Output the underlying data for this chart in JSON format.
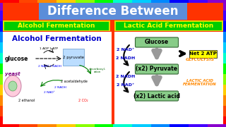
{
  "title": "Difference Between",
  "title_bg": "#5b8dd9",
  "title_color": "white",
  "left_label": "Alcohol Fermentation",
  "right_label": "Lactic Acid Fermentation",
  "label_bg": "#00cc00",
  "label_text_color": "#ffff00",
  "outer_bg": "#ff3300",
  "panel_bg": "white",
  "left_subtitle": "Alcohol Fermentation",
  "left_subtitle_color": "#0000cc",
  "right_nodes": [
    "Glucose",
    "(x2) Pyruvate",
    "(x2) Lactic acid"
  ],
  "right_node_bg": "#88cc88",
  "right_node_border": "#336633",
  "right_side_label1": "Net 2 ATP",
  "right_side_label1_bg": "#ffff00",
  "right_side_label2": "GLYCOLYSIS",
  "right_side_label2_color": "#ff8800",
  "right_side_label3": "LACTIC ACID\nFERMENTATION",
  "right_side_label3_color": "#ff8800",
  "arrow_color": "#999999",
  "curve_color": "#000000",
  "nad_color": "#0000cc",
  "nadh_color": "#0000cc",
  "yellow_border": "#dddd00",
  "blue_gradient_right": "#0000ff",
  "right_outer_bg": "#cccc00"
}
